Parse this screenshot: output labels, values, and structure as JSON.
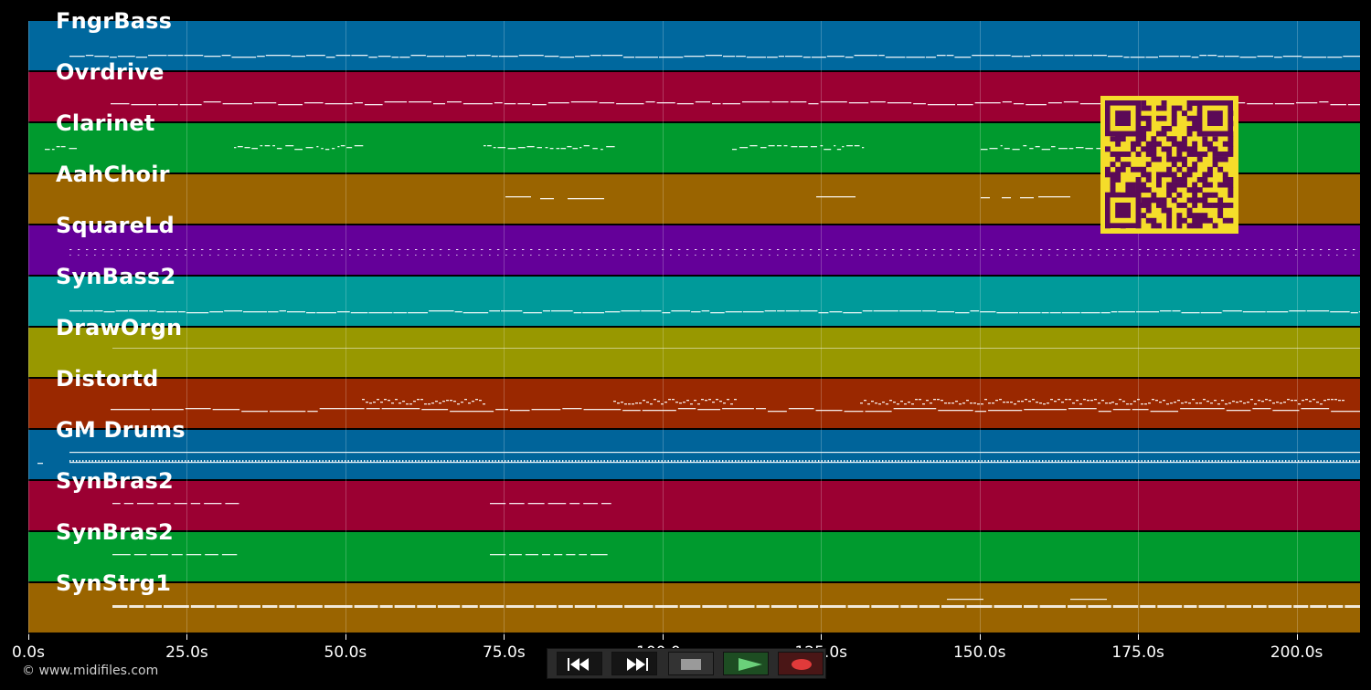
{
  "tracks": [
    {
      "name": "FngrBass",
      "color": "#00689e",
      "notes": "bass"
    },
    {
      "name": "Ovrdrive",
      "color": "#9b0032",
      "notes": "bass2"
    },
    {
      "name": "Clarinet",
      "color": "#009a2e",
      "notes": "phrases"
    },
    {
      "name": "AahChoir",
      "color": "#9a6400",
      "notes": "choir"
    },
    {
      "name": "SquareLd",
      "color": "#640099",
      "notes": "dots"
    },
    {
      "name": "SynBass2",
      "color": "#009a9a",
      "notes": "bass"
    },
    {
      "name": "DrawOrgn",
      "color": "#989800",
      "notes": "thin"
    },
    {
      "name": "Distortd",
      "color": "#9a2800",
      "notes": "lead"
    },
    {
      "name": "GM Drums",
      "color": "#00649a",
      "notes": "drums"
    },
    {
      "name": "SynBras2",
      "color": "#9b0032",
      "notes": "brass"
    },
    {
      "name": "SynBras2",
      "color": "#009a2e",
      "notes": "brass"
    },
    {
      "name": "SynStrg1",
      "color": "#9a6400",
      "notes": "strings"
    }
  ],
  "axis": {
    "ticks": [
      "0.0s",
      "25.0s",
      "50.0s",
      "75.0s",
      "100.0s",
      "125.0s",
      "150.0s",
      "175.0s",
      "200.0s"
    ],
    "max_seconds": 210
  },
  "copyright": "© www.midifiles.com",
  "transport": {
    "buttons": [
      {
        "name": "rewind",
        "icon": "rewind-icon"
      },
      {
        "name": "fast-forward",
        "icon": "fast-forward-icon"
      },
      {
        "name": "stop",
        "icon": "stop-icon"
      },
      {
        "name": "play",
        "icon": "play-icon"
      },
      {
        "name": "record",
        "icon": "record-icon"
      }
    ]
  },
  "overlay": {
    "type": "qr-code",
    "fg": "#5b0a57",
    "bg": "#f5dd2a"
  }
}
